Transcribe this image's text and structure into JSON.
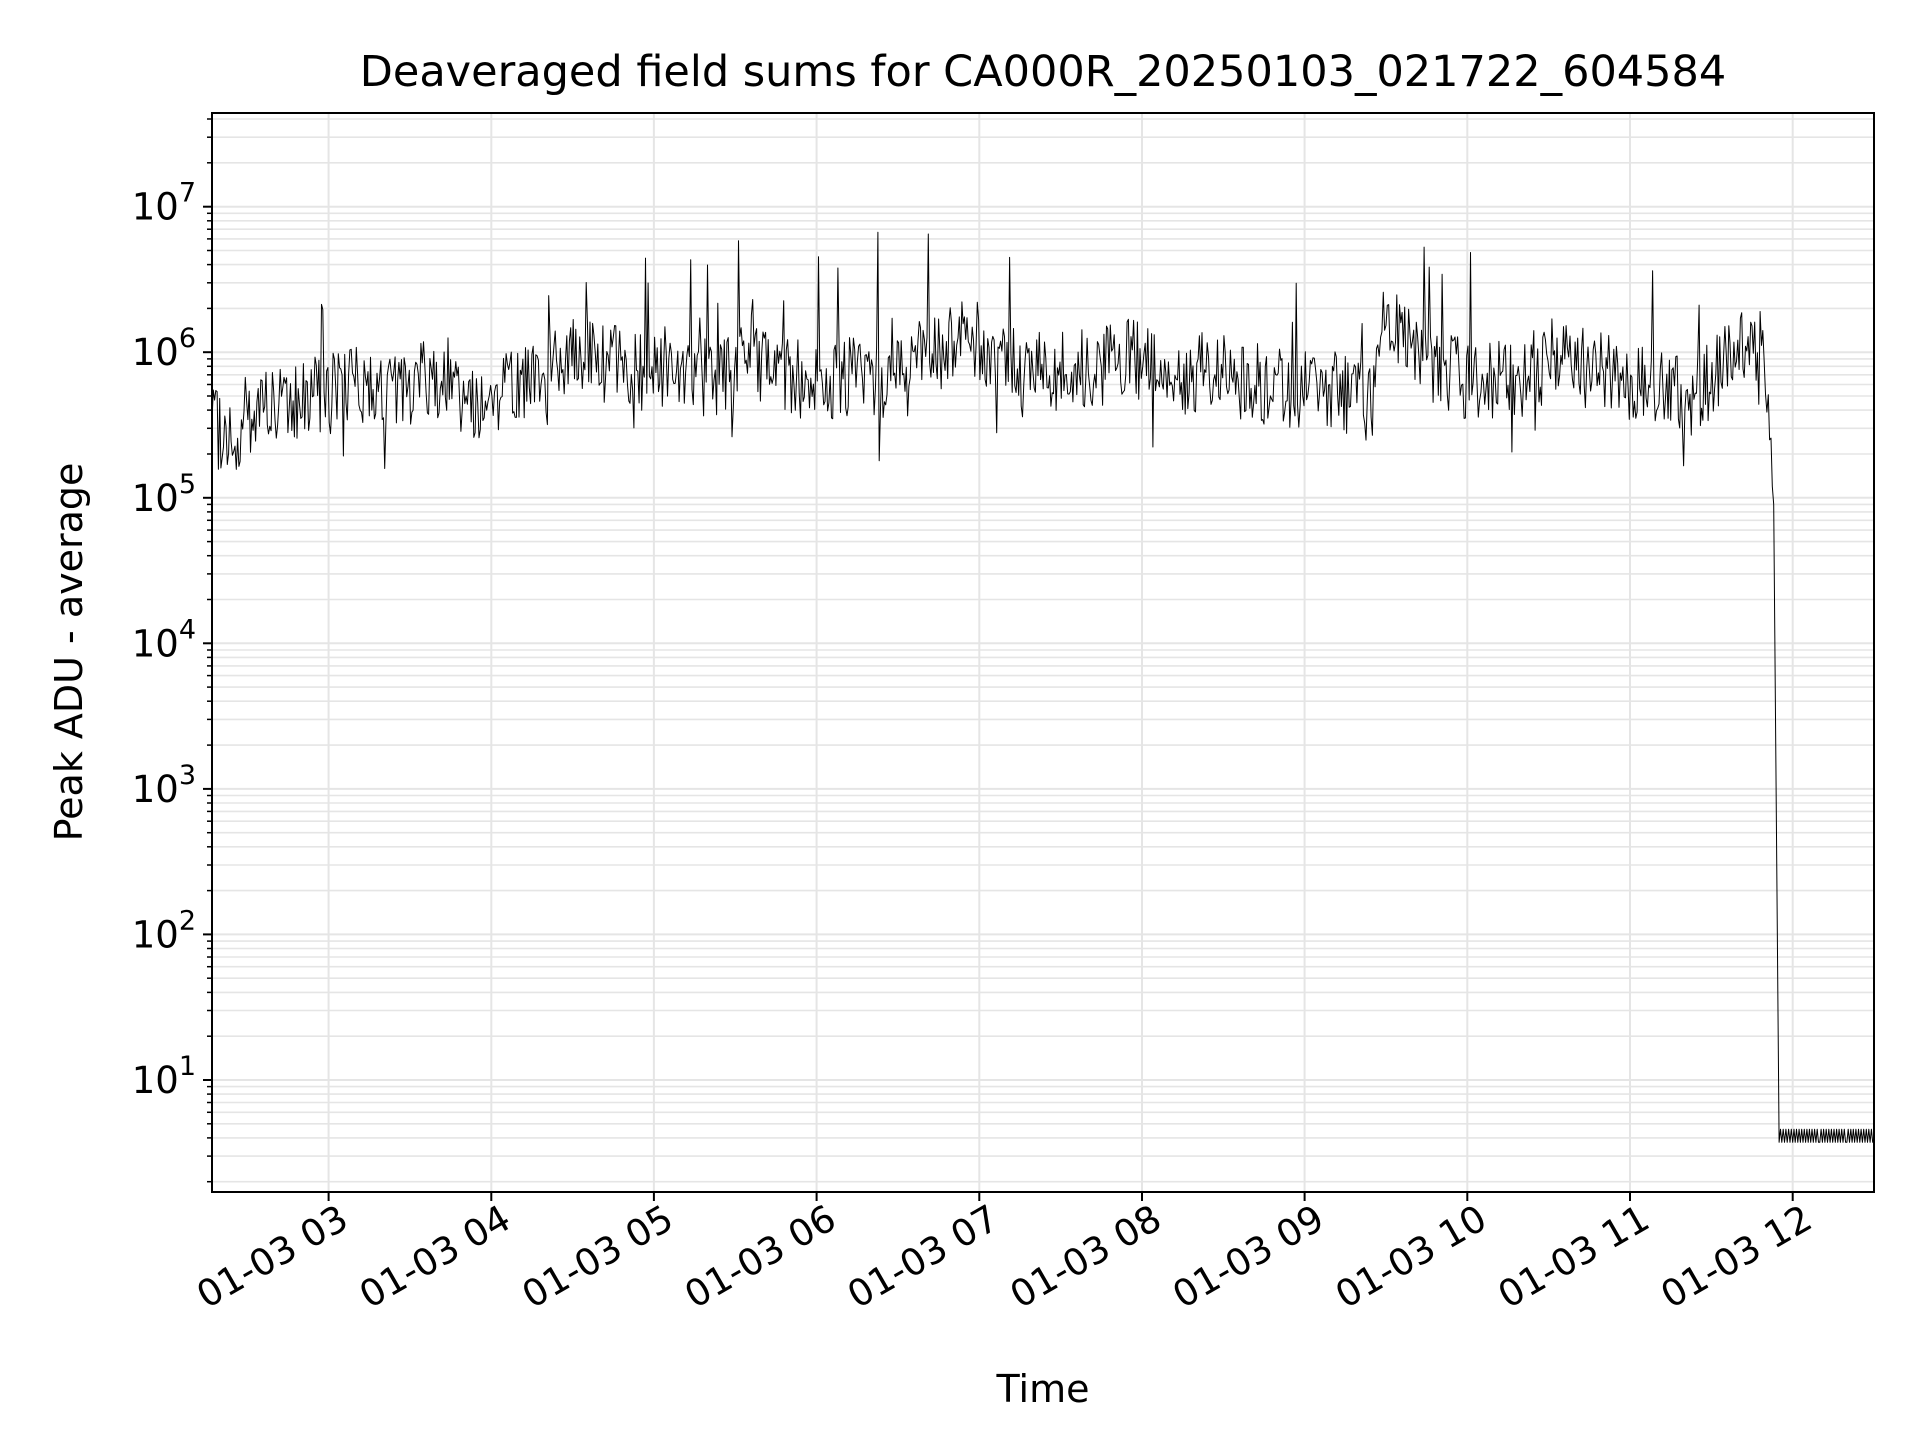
{
  "chart_data": {
    "type": "line",
    "title": "Deaveraged field sums for CA000R_20250103_021722_604584",
    "xlabel": "Time",
    "ylabel": "Peak ADU - average",
    "x_scale": "time",
    "y_scale": "log",
    "xlim": [
      "2025-01-03 02:17",
      "2025-01-03 12:30"
    ],
    "ylim": [
      1.7,
      44000000
    ],
    "x_ticks": [
      "01-03 03",
      "01-03 04",
      "01-03 05",
      "01-03 06",
      "01-03 07",
      "01-03 08",
      "01-03 09",
      "01-03 10",
      "01-03 11",
      "01-03 12"
    ],
    "y_ticks": [
      {
        "base": "10",
        "exp": "1"
      },
      {
        "base": "10",
        "exp": "2"
      },
      {
        "base": "10",
        "exp": "3"
      },
      {
        "base": "10",
        "exp": "4"
      },
      {
        "base": "10",
        "exp": "5"
      },
      {
        "base": "10",
        "exp": "6"
      },
      {
        "base": "10",
        "exp": "7"
      }
    ],
    "grid": true,
    "legend": "none",
    "series": [
      {
        "color": "#000000",
        "x": [
          "2025-01-03 02:17",
          "2025-01-03 02:25",
          "2025-01-03 02:35",
          "2025-01-03 02:45",
          "2025-01-03 02:55",
          "2025-01-03 03:05",
          "2025-01-03 03:15",
          "2025-01-03 03:25",
          "2025-01-03 03:35",
          "2025-01-03 03:45",
          "2025-01-03 03:55",
          "2025-01-03 04:05",
          "2025-01-03 04:15",
          "2025-01-03 04:25",
          "2025-01-03 04:35",
          "2025-01-03 04:45",
          "2025-01-03 04:55",
          "2025-01-03 05:05",
          "2025-01-03 05:15",
          "2025-01-03 05:25",
          "2025-01-03 05:35",
          "2025-01-03 05:45",
          "2025-01-03 05:55",
          "2025-01-03 06:05",
          "2025-01-03 06:15",
          "2025-01-03 06:25",
          "2025-01-03 06:35",
          "2025-01-03 06:45",
          "2025-01-03 06:55",
          "2025-01-03 07:05",
          "2025-01-03 07:15",
          "2025-01-03 07:25",
          "2025-01-03 07:35",
          "2025-01-03 07:45",
          "2025-01-03 07:55",
          "2025-01-03 08:05",
          "2025-01-03 08:15",
          "2025-01-03 08:25",
          "2025-01-03 08:35",
          "2025-01-03 08:45",
          "2025-01-03 08:55",
          "2025-01-03 09:05",
          "2025-01-03 09:15",
          "2025-01-03 09:25",
          "2025-01-03 09:30",
          "2025-01-03 09:35",
          "2025-01-03 09:45",
          "2025-01-03 09:55",
          "2025-01-03 10:05",
          "2025-01-03 10:15",
          "2025-01-03 10:25",
          "2025-01-03 10:35",
          "2025-01-03 10:45",
          "2025-01-03 10:55",
          "2025-01-03 11:05",
          "2025-01-03 11:15",
          "2025-01-03 11:25",
          "2025-01-03 11:35",
          "2025-01-03 11:45",
          "2025-01-03 11:48",
          "2025-01-03 11:50",
          "2025-01-03 11:52",
          "2025-01-03 11:53",
          "2025-01-03 11:55",
          "2025-01-03 12:00",
          "2025-01-03 12:10",
          "2025-01-03 12:20",
          "2025-01-03 12:30"
        ],
        "y": [
          300000,
          250000,
          450000,
          400000,
          500000,
          550000,
          600000,
          500000,
          700000,
          600000,
          450000,
          550000,
          650000,
          800000,
          1000000,
          900000,
          750000,
          800000,
          700000,
          650000,
          900000,
          750000,
          650000,
          600000,
          700000,
          650000,
          900000,
          1200000,
          1300000,
          900000,
          850000,
          700000,
          750000,
          800000,
          900000,
          800000,
          700000,
          750000,
          650000,
          600000,
          550000,
          600000,
          500000,
          450000,
          2000000,
          1200000,
          900000,
          700000,
          600000,
          650000,
          700000,
          1100000,
          900000,
          700000,
          600000,
          500000,
          550000,
          800000,
          1500000,
          1300000,
          900000,
          150000,
          90000,
          4,
          4,
          4,
          4,
          4
        ]
      }
    ]
  }
}
